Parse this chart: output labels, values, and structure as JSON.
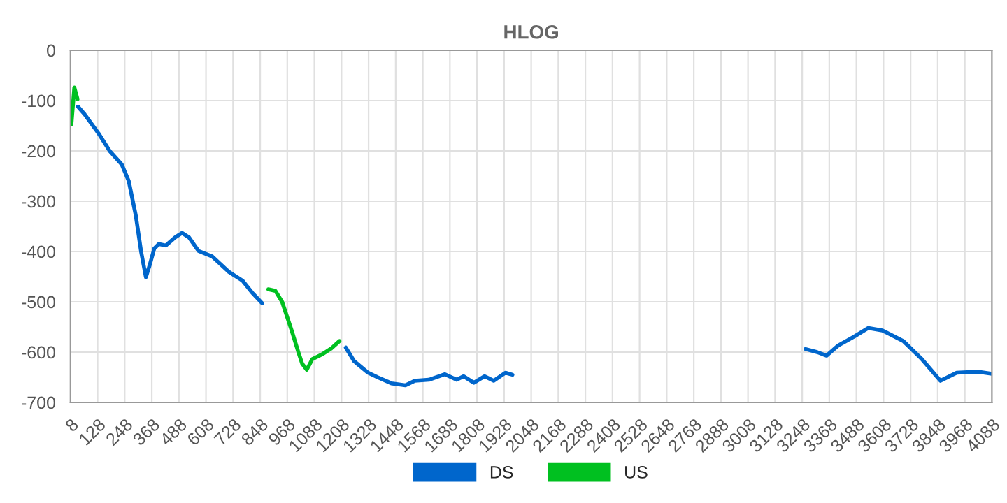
{
  "chart_data": {
    "type": "line",
    "title": "HLOG",
    "series": [
      {
        "name": "DS",
        "color": "#0066cc",
        "x": [
          41,
          70,
          132,
          183,
          235,
          266,
          297,
          321,
          342,
          358,
          379,
          399,
          430,
          471,
          502,
          533,
          575,
          636,
          708,
          770,
          811,
          857,
          870,
          1227,
          1264,
          1326,
          1368,
          1429,
          1491,
          1533,
          1595,
          1666,
          1718,
          1749,
          1794,
          1841,
          1882,
          1934,
          1965,
          2000,
          3263,
          3314,
          3356,
          3407,
          3479,
          3541,
          3603,
          3696,
          3778,
          3860,
          3932,
          4025,
          4088
        ],
        "values": [
          -112,
          -127,
          -165,
          -201,
          -227,
          -260,
          -328,
          -401,
          -451,
          -428,
          -394,
          -385,
          -388,
          -372,
          -363,
          -372,
          -399,
          -410,
          -440,
          -458,
          -481,
          -503,
          null,
          -591,
          -618,
          -641,
          -650,
          -662,
          -666,
          -657,
          -655,
          -644,
          -655,
          -648,
          -661,
          -648,
          -657,
          -641,
          -645,
          null,
          -594,
          -600,
          -607,
          -587,
          -569,
          -552,
          -557,
          -578,
          -614,
          -657,
          -641,
          -639,
          -643
        ]
      },
      {
        "name": "US",
        "color": "#00c020",
        "x": [
          12,
          25,
          39,
          60,
          884,
          915,
          945,
          986,
          1017,
          1034,
          1054,
          1079,
          1120,
          1162,
          1199
        ],
        "values": [
          -147,
          -74,
          -97,
          null,
          -475,
          -478,
          -500,
          -555,
          -600,
          -623,
          -635,
          -614,
          -605,
          -593,
          -578
        ]
      }
    ],
    "xlim": [
      8,
      4088
    ],
    "xticks": [
      8,
      128,
      248,
      368,
      488,
      608,
      728,
      848,
      968,
      1088,
      1208,
      1328,
      1448,
      1568,
      1688,
      1808,
      1928,
      2048,
      2168,
      2288,
      2408,
      2528,
      2648,
      2768,
      2888,
      3008,
      3128,
      3248,
      3368,
      3488,
      3608,
      3728,
      3848,
      3968,
      4088
    ],
    "ylim": [
      -700,
      0
    ],
    "yticks": [
      -700,
      -600,
      -500,
      -400,
      -300,
      -200,
      -100,
      0
    ],
    "grid": true,
    "legend": "bottom",
    "marker": "none",
    "line_style": "solid"
  }
}
